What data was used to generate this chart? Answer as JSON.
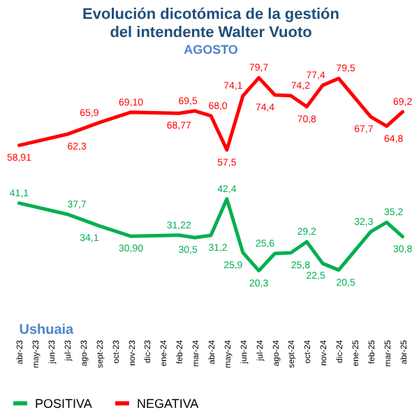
{
  "chart_data": {
    "type": "line",
    "title": "Evolución dicotómica de la gestión del intendente Walter Vuoto",
    "subtitle": "AGOSTO",
    "annotations": [
      "Ushuaia"
    ],
    "categories": [
      "abr-23",
      "may-23",
      "jun-23",
      "jul-23",
      "ago-23",
      "sept-23",
      "oct-23",
      "nov-23",
      "dic-23",
      "ene-24",
      "feb-24",
      "mar-24",
      "abr-24",
      "may-24",
      "jun-24",
      "jul-24",
      "ago-24",
      "sept-24",
      "oct-24",
      "nov-24",
      "dic-24",
      "ene-25",
      "feb-25",
      "mar-25",
      "abr-25"
    ],
    "series": [
      {
        "name": "POSITIVA",
        "color": "#00b050",
        "values": [
          41.1,
          null,
          null,
          37.7,
          null,
          34.1,
          null,
          30.9,
          null,
          null,
          31.22,
          30.5,
          31.2,
          42.4,
          25.9,
          20.3,
          25.6,
          25.8,
          29.2,
          22.5,
          20.5,
          null,
          32.3,
          35.2,
          30.8
        ],
        "value_labels": [
          "41,1",
          null,
          null,
          "37,7",
          null,
          "34,1",
          null,
          "30,90",
          null,
          null,
          "31,22",
          "30,5",
          "31,2",
          "42,4",
          "25,9",
          "20,3",
          "25,6",
          "25,8",
          "29,2",
          "22,5",
          "20,5",
          null,
          "32,3",
          "35,2",
          "30,8"
        ]
      },
      {
        "name": "NEGATIVA",
        "color": "#ff0000",
        "values": [
          58.91,
          null,
          null,
          62.3,
          null,
          65.9,
          null,
          69.1,
          null,
          null,
          68.77,
          69.5,
          68.0,
          57.5,
          74.1,
          79.7,
          74.4,
          74.2,
          70.8,
          77.4,
          79.5,
          null,
          67.7,
          64.8,
          69.2
        ],
        "value_labels": [
          "58,91",
          null,
          null,
          "62,3",
          null,
          "65,9",
          null,
          "69,10",
          null,
          null,
          "68,77",
          "69,5",
          "68,0",
          "57,5",
          "74,1",
          "79,7",
          "74,4",
          "74,2",
          "70,8",
          "77,4",
          "79,5",
          null,
          "67,7",
          "64,8",
          "69,2"
        ]
      }
    ],
    "legend": "bottom",
    "grid": false,
    "marker": "none",
    "line_style": "solid"
  }
}
